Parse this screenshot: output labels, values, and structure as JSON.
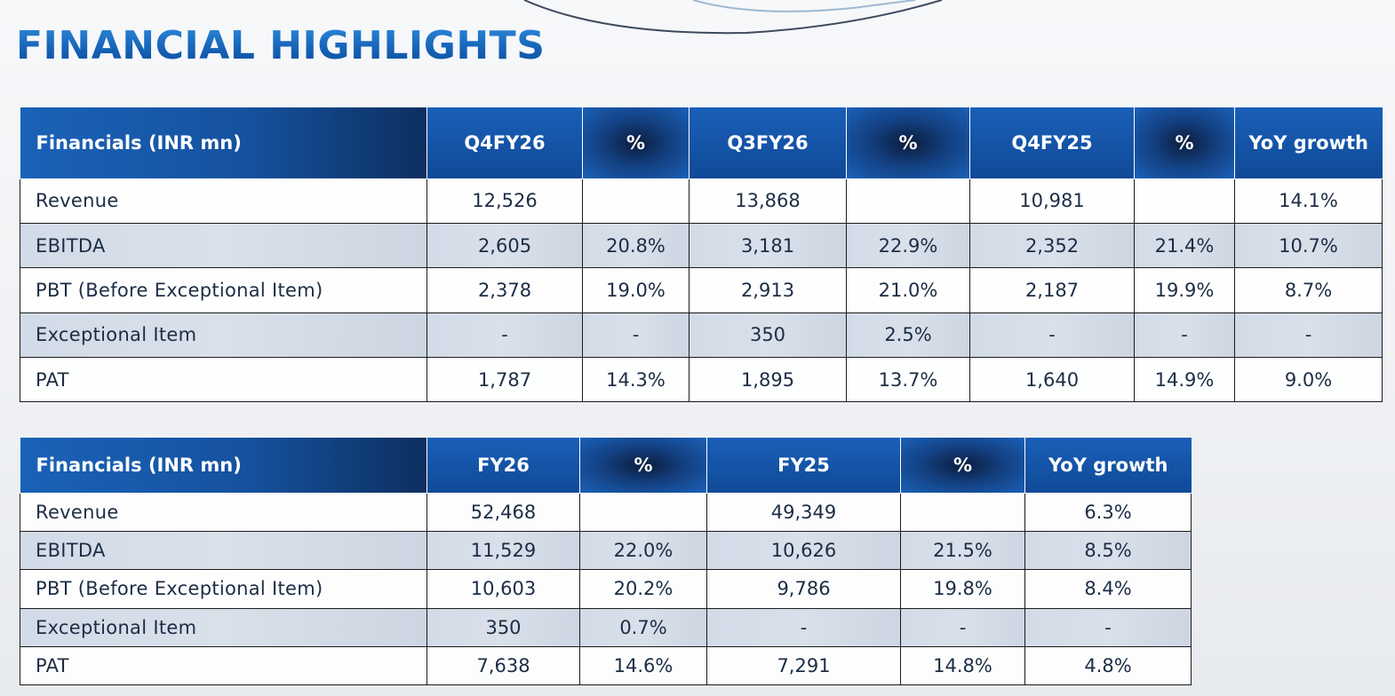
{
  "page": {
    "title": "FINANCIAL HIGHLIGHTS"
  },
  "quarterly_table": {
    "headers": [
      "Financials (INR mn)",
      "Q4FY26",
      "%",
      "Q3FY26",
      "%",
      "Q4FY25",
      "%",
      "YoY growth"
    ],
    "rows": [
      [
        "Revenue",
        "12,526",
        "",
        "13,868",
        "",
        "10,981",
        "",
        "14.1%"
      ],
      [
        "EBITDA",
        "2,605",
        "20.8%",
        "3,181",
        "22.9%",
        "2,352",
        "21.4%",
        "10.7%"
      ],
      [
        "PBT (Before Exceptional Item)",
        "2,378",
        "19.0%",
        "2,913",
        "21.0%",
        "2,187",
        "19.9%",
        "8.7%"
      ],
      [
        "Exceptional Item",
        "-",
        "-",
        "350",
        "2.5%",
        "-",
        "-",
        "-"
      ],
      [
        "PAT",
        "1,787",
        "14.3%",
        "1,895",
        "13.7%",
        "1,640",
        "14.9%",
        "9.0%"
      ]
    ]
  },
  "annual_table": {
    "headers": [
      "Financials (INR mn)",
      "FY26",
      "%",
      "FY25",
      "%",
      "YoY growth"
    ],
    "rows": [
      [
        "Revenue",
        "52,468",
        "",
        "49,349",
        "",
        "6.3%"
      ],
      [
        "EBITDA",
        "11,529",
        "22.0%",
        "10,626",
        "21.5%",
        "8.5%"
      ],
      [
        "PBT (Before Exceptional Item)",
        "10,603",
        "20.2%",
        "9,786",
        "19.8%",
        "8.4%"
      ],
      [
        "Exceptional Item",
        "350",
        "0.7%",
        "-",
        "-",
        "-"
      ],
      [
        "PAT",
        "7,638",
        "14.6%",
        "7,291",
        "14.8%",
        "4.8%"
      ]
    ]
  },
  "colors": {
    "title": "#1769c2",
    "header_blue": "#1a5fb8",
    "header_dark": "#0b1d3c",
    "alt_row": "#d5dde8",
    "text": "#1c2d45"
  }
}
